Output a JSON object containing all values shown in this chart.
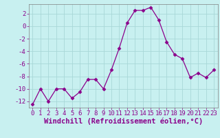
{
  "x": [
    0,
    1,
    2,
    3,
    4,
    5,
    6,
    7,
    8,
    9,
    10,
    11,
    12,
    13,
    14,
    15,
    16,
    17,
    18,
    19,
    20,
    21,
    22,
    23
  ],
  "y": [
    -12.5,
    -10,
    -12,
    -10,
    -10,
    -11.5,
    -10.5,
    -8.5,
    -8.5,
    -10,
    -7,
    -3.5,
    0.5,
    2.5,
    2.5,
    3,
    1,
    -2.5,
    -4.5,
    -5.2,
    -8.2,
    -7.5,
    -8.2,
    -7
  ],
  "line_color": "#8b008b",
  "marker": "D",
  "marker_size": 2.5,
  "bg_color": "#c8f0f0",
  "grid_color": "#a8d8d8",
  "xlabel": "Windchill (Refroidissement éolien,°C)",
  "xlabel_fontsize": 7.5,
  "tick_fontsize": 6.5,
  "ylim": [
    -13,
    3.5
  ],
  "yticks": [
    2,
    0,
    -2,
    -4,
    -6,
    -8,
    -10,
    -12
  ],
  "xticks": [
    0,
    1,
    2,
    3,
    4,
    5,
    6,
    7,
    8,
    9,
    10,
    11,
    12,
    13,
    14,
    15,
    16,
    17,
    18,
    19,
    20,
    21,
    22,
    23
  ]
}
